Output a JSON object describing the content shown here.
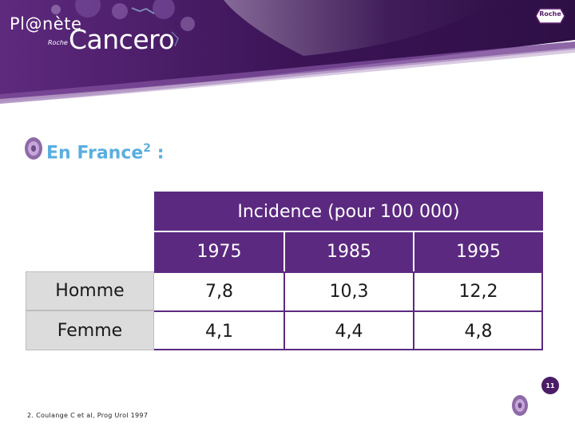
{
  "header": {
    "brand_small": "Pl@nète",
    "brand_roche_tag": "Roche",
    "brand_big": "Cancero",
    "roche_logo": "Roche",
    "colors": {
      "banner_dark": "#3c1457",
      "banner_mid": "#6a2d8a",
      "banner_light": "#b89bc9"
    }
  },
  "section": {
    "title": "En France",
    "title_sup": "2",
    "title_suffix": " :",
    "icon": "target-circle-icon"
  },
  "table": {
    "header": "Incidence (pour 100 000)",
    "years": [
      "1975",
      "1985",
      "1995"
    ],
    "rows": [
      {
        "label": "Homme",
        "values": [
          "7,8",
          "10,3",
          "12,2"
        ]
      },
      {
        "label": "Femme",
        "values": [
          "4,1",
          "4,4",
          "4,8"
        ]
      }
    ],
    "colors": {
      "header_bg": "#5b2a80",
      "rowhead_bg": "#dcdcdc"
    }
  },
  "footnote": "2. Coulange C et al, Prog Urol 1997",
  "page_number": "11"
}
